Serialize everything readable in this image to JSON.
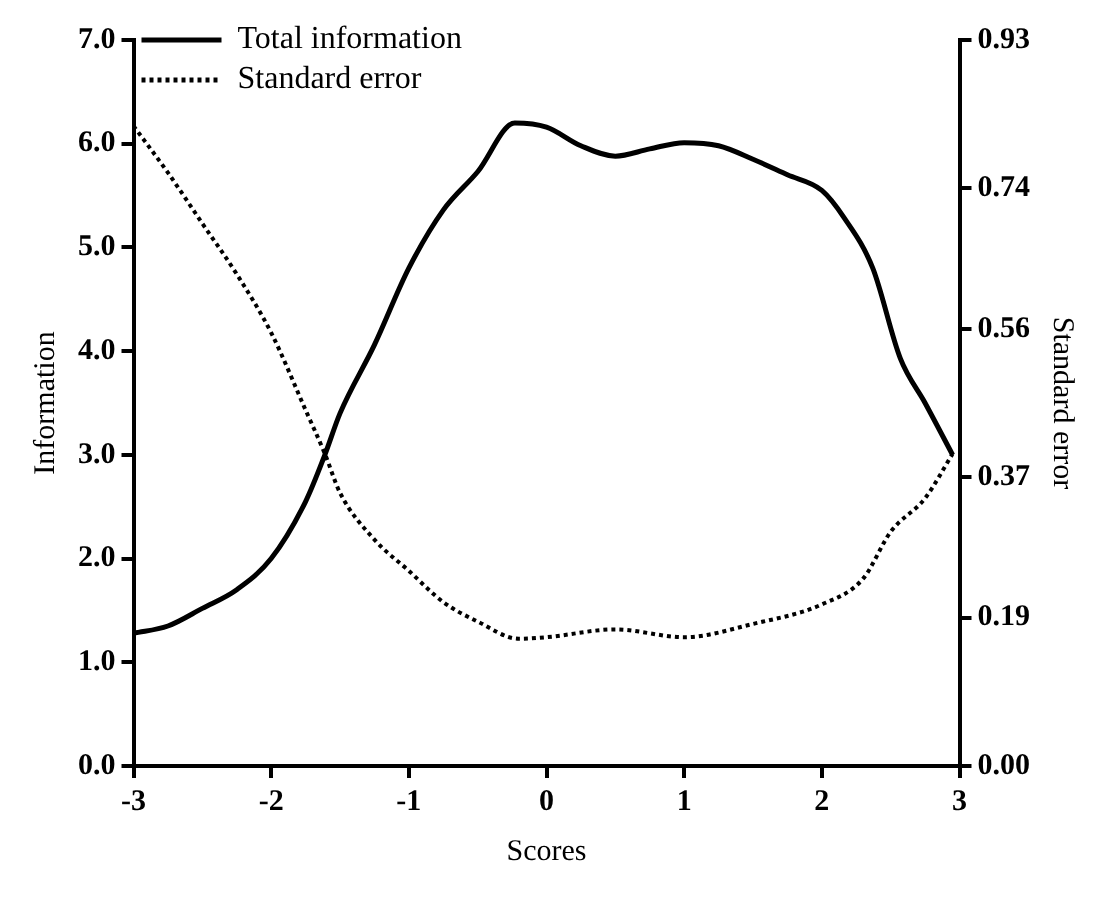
{
  "chart_data": {
    "type": "line",
    "xlabel": "Scores",
    "ylabel": "Information",
    "y2label": "Standard error",
    "xlim": [
      -3,
      3
    ],
    "xticks": [
      -3,
      -2,
      -1,
      0,
      1,
      2,
      3
    ],
    "ylim": [
      0,
      7
    ],
    "yticks": [
      {
        "value": 0,
        "label": "0.0"
      },
      {
        "value": 1,
        "label": "1.0"
      },
      {
        "value": 2,
        "label": "2.0"
      },
      {
        "value": 3,
        "label": "3.0"
      },
      {
        "value": 4,
        "label": "4.0"
      },
      {
        "value": 5,
        "label": "5.0"
      },
      {
        "value": 6,
        "label": "6.0"
      },
      {
        "value": 7,
        "label": "7.0"
      }
    ],
    "y2lim": [
      0,
      0.93
    ],
    "y2ticks": [
      {
        "value": 0,
        "label": "0.00"
      },
      0.19,
      0.37,
      0.56,
      0.74,
      0.93
    ],
    "grid": false,
    "legend": "top left",
    "marker": "none",
    "series": [
      {
        "name": "Total information",
        "color": "#000000",
        "line_style": "solid",
        "x": [
          -3,
          -2.75,
          -2.5,
          -2.25,
          -2,
          -1.75,
          -1.61,
          -1.5,
          -1.25,
          -1,
          -0.75,
          -0.5,
          -0.23,
          0,
          0.25,
          0.5,
          0.75,
          1,
          1.25,
          1.5,
          1.75,
          2,
          2.16,
          2.37,
          2.57,
          2.75,
          2.95
        ],
        "values": [
          1.28,
          1.35,
          1.52,
          1.7,
          2.0,
          2.55,
          3.0,
          3.4,
          4.06,
          4.8,
          5.36,
          5.73,
          6.2,
          6.16,
          5.98,
          5.88,
          5.95,
          6.01,
          5.98,
          5.85,
          5.7,
          5.55,
          5.29,
          4.8,
          3.93,
          3.5,
          3.0
        ]
      },
      {
        "name": "Standard error",
        "color": "#000000",
        "line_style": "dotted",
        "axis": "y2",
        "x": [
          -3,
          -2.75,
          -2.5,
          -2.25,
          -2,
          -1.75,
          -1.61,
          -1.5,
          -1.25,
          -1,
          -0.75,
          -0.5,
          -0.2,
          0,
          0.5,
          1,
          1.5,
          2,
          2.3,
          2.5,
          2.75,
          2.95
        ],
        "values": [
          0.82,
          0.76,
          0.695,
          0.63,
          0.555,
          0.456,
          0.4,
          0.35,
          0.29,
          0.25,
          0.21,
          0.185,
          0.163,
          0.165,
          0.175,
          0.165,
          0.182,
          0.207,
          0.24,
          0.3,
          0.343,
          0.4
        ]
      }
    ]
  }
}
